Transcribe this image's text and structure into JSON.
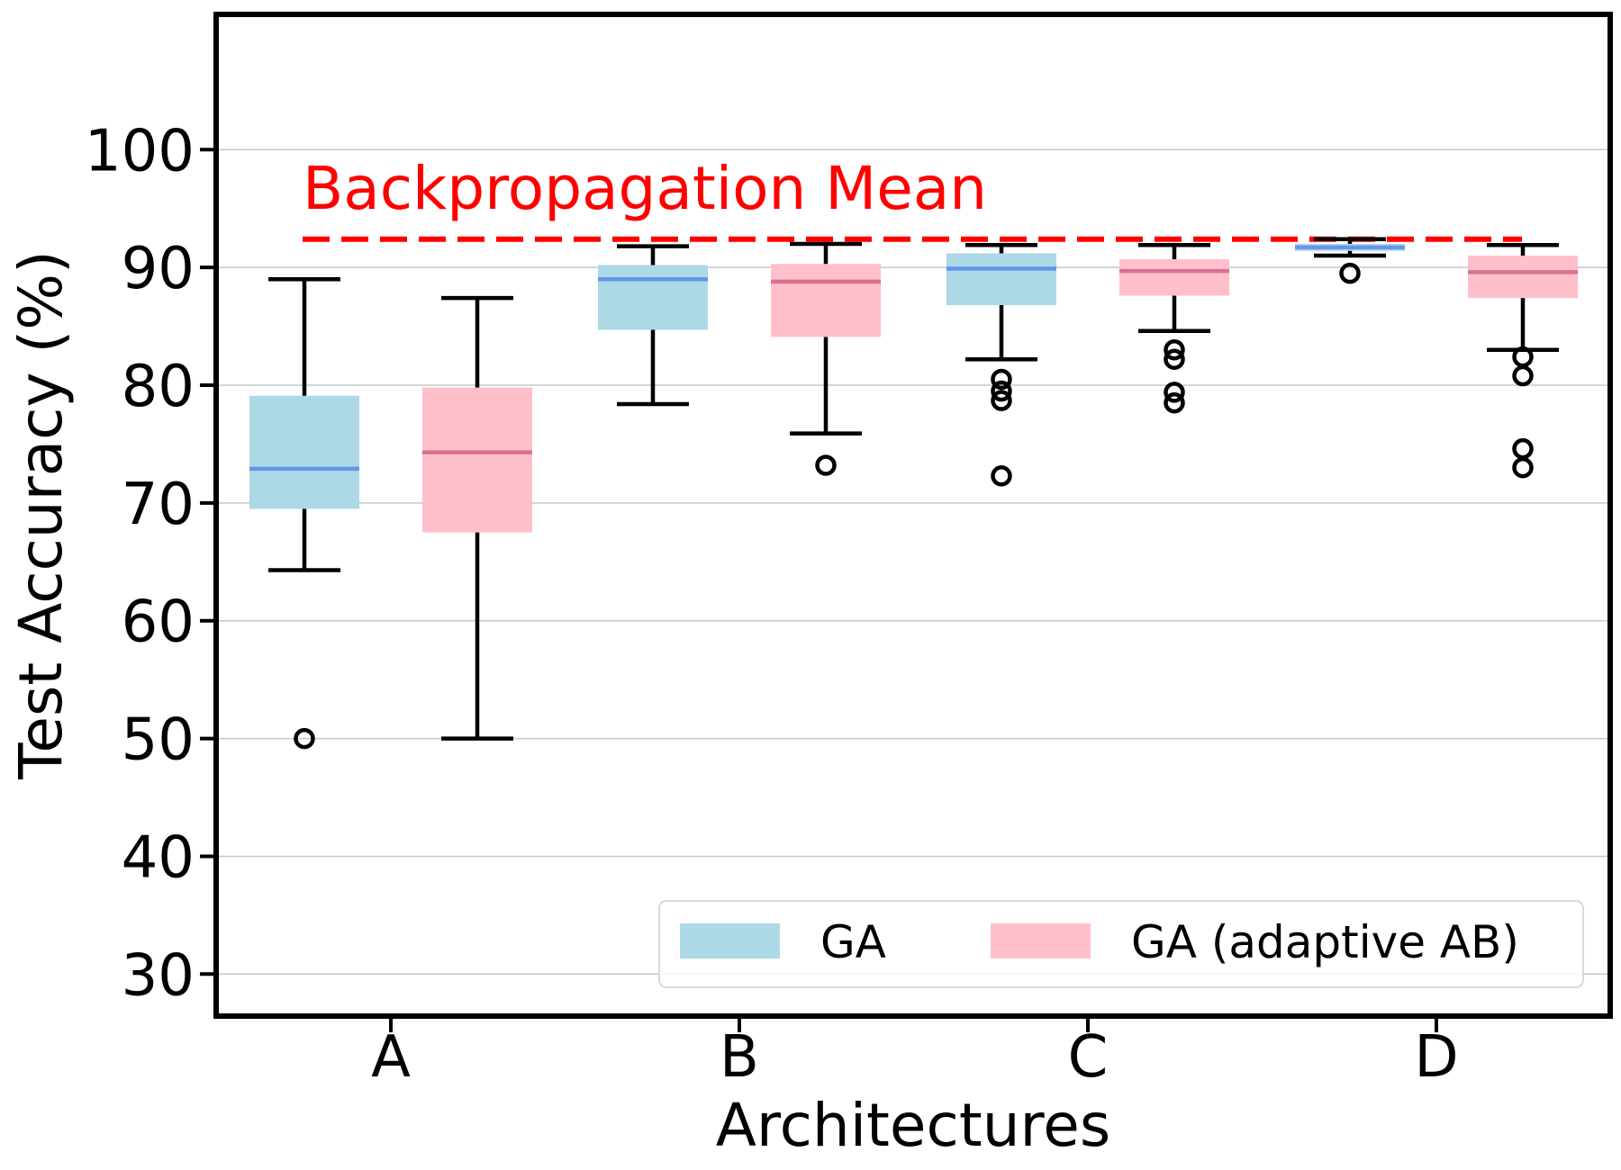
{
  "chart_data": {
    "type": "boxplot",
    "xlabel": "Architectures",
    "ylabel": "Test Accuracy (%)",
    "ylim": [
      25,
      110
    ],
    "yticks": [
      30,
      40,
      50,
      60,
      70,
      80,
      90,
      100
    ],
    "grid": "horizontal",
    "categories": [
      "A",
      "B",
      "C",
      "D"
    ],
    "series": [
      {
        "name": "GA",
        "color": "#add8e6",
        "median_color": "#6495ed",
        "boxes": [
          {
            "category": "A",
            "whisker_low": 64.3,
            "q1": 69.5,
            "median": 72.9,
            "q3": 79.1,
            "whisker_high": 89.0,
            "outliers": [
              50.0
            ]
          },
          {
            "category": "B",
            "whisker_low": 78.4,
            "q1": 84.7,
            "median": 89.0,
            "q3": 90.2,
            "whisker_high": 91.8,
            "outliers": []
          },
          {
            "category": "C",
            "whisker_low": 82.2,
            "q1": 86.8,
            "median": 89.9,
            "q3": 91.2,
            "whisker_high": 91.9,
            "outliers": [
              72.3,
              78.7,
              79.5,
              80.5
            ]
          },
          {
            "category": "D",
            "whisker_low": 91.0,
            "q1": 91.4,
            "median": 91.7,
            "q3": 92.0,
            "whisker_high": 92.4,
            "outliers": [
              89.5
            ]
          }
        ]
      },
      {
        "name": "GA (adaptive AB)",
        "color": "#ffc0cb",
        "median_color": "#db7093",
        "boxes": [
          {
            "category": "A",
            "whisker_low": 50.0,
            "q1": 67.5,
            "median": 74.3,
            "q3": 79.8,
            "whisker_high": 87.4,
            "outliers": []
          },
          {
            "category": "B",
            "whisker_low": 75.9,
            "q1": 84.1,
            "median": 88.8,
            "q3": 90.3,
            "whisker_high": 92.0,
            "outliers": [
              73.2
            ]
          },
          {
            "category": "C",
            "whisker_low": 84.6,
            "q1": 87.6,
            "median": 89.7,
            "q3": 90.7,
            "whisker_high": 91.9,
            "outliers": [
              78.5,
              79.4,
              82.2,
              83.0
            ]
          },
          {
            "category": "D",
            "whisker_low": 83.0,
            "q1": 87.4,
            "median": 89.6,
            "q3": 91.0,
            "whisker_high": 91.9,
            "outliers": [
              73.0,
              74.6,
              80.8,
              82.4
            ]
          }
        ]
      }
    ],
    "reference_line": {
      "label": "Backpropagation Mean",
      "value": 92.4,
      "color": "#ff0000",
      "style": "dashed"
    },
    "legend": {
      "position": "bottom-right",
      "entries": [
        "GA",
        "GA (adaptive AB)"
      ]
    }
  }
}
